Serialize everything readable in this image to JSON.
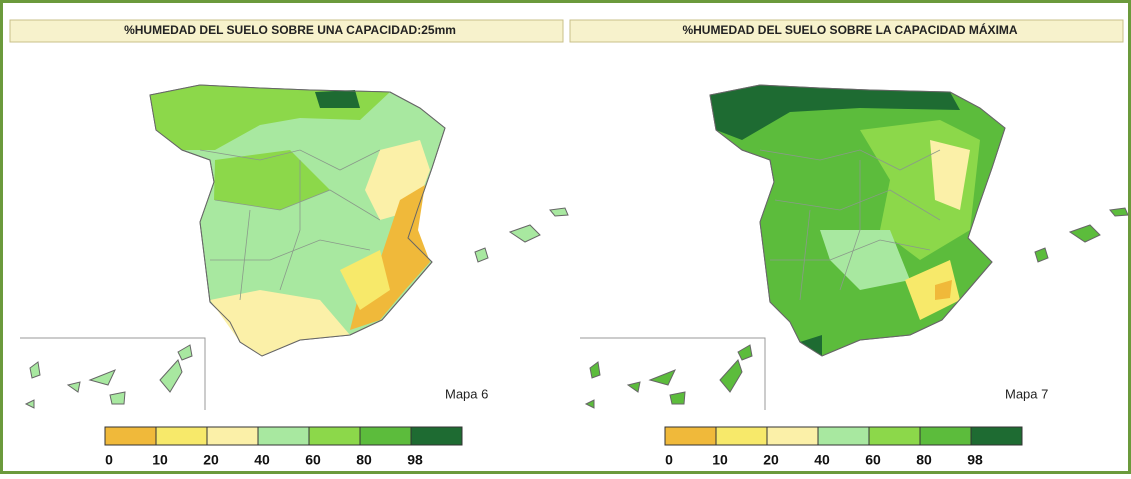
{
  "maps": [
    {
      "title": "%HUMEDAD DEL SUELO SOBRE UNA CAPACIDAD:25mm",
      "label": "Mapa 6",
      "legend": {
        "ticks": [
          0,
          10,
          20,
          40,
          60,
          80,
          98
        ],
        "colors": [
          "#f0b93a",
          "#f7e96a",
          "#fbf0a8",
          "#a8e8a0",
          "#8cd84a",
          "#5cbc3c",
          "#1e6b32"
        ]
      }
    },
    {
      "title": "%HUMEDAD DEL SUELO SOBRE LA CAPACIDAD MÁXIMA",
      "label": "Mapa 7",
      "legend": {
        "ticks": [
          0,
          10,
          20,
          40,
          60,
          80,
          98
        ],
        "colors": [
          "#f0b93a",
          "#f7e96a",
          "#fbf0a8",
          "#a8e8a0",
          "#8cd84a",
          "#5cbc3c",
          "#1e6b32"
        ]
      }
    }
  ]
}
